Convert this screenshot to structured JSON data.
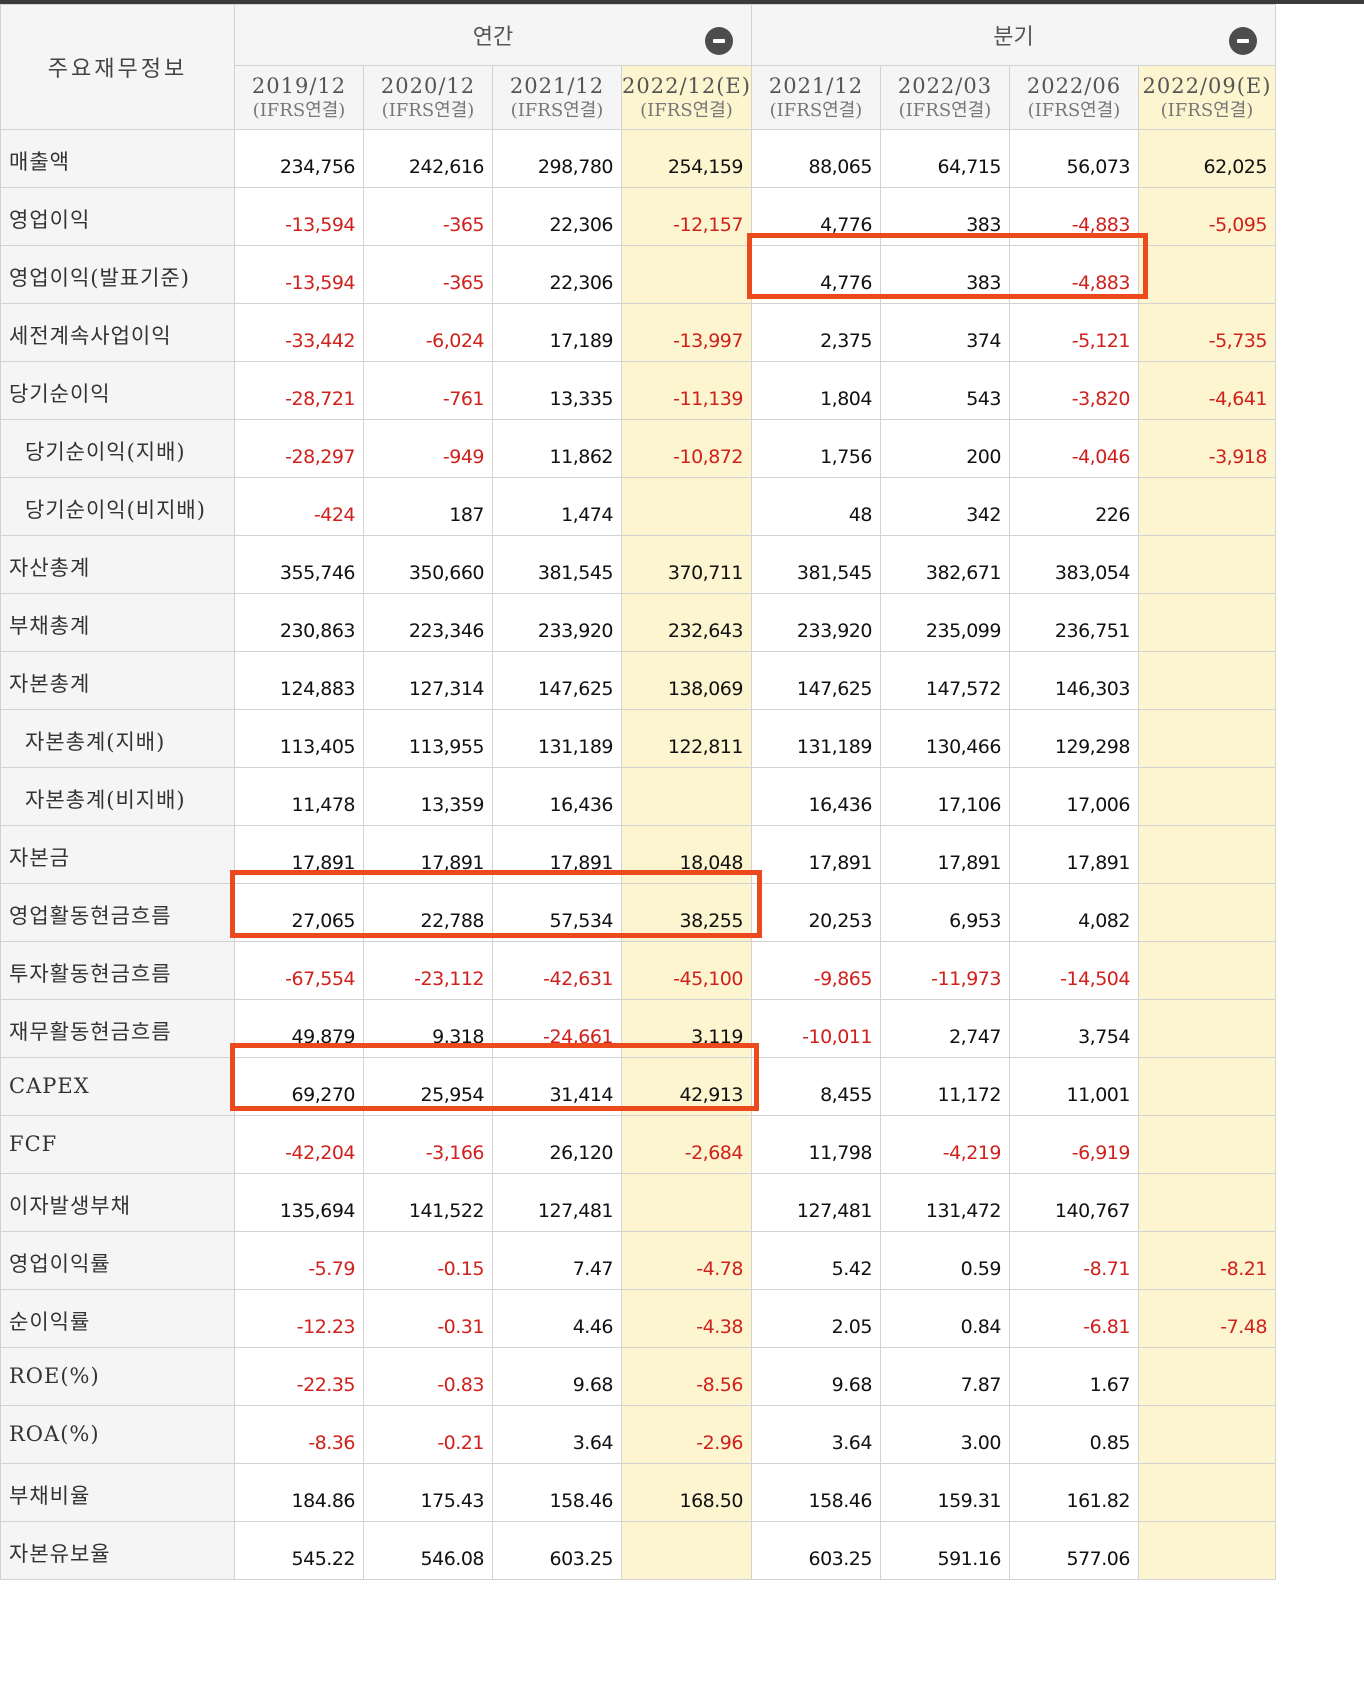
{
  "header": {
    "title": "주요재무정보",
    "annual_label": "연간",
    "quarter_label": "분기"
  },
  "columns": [
    {
      "period": "2019/12",
      "basis": "(IFRS연결)",
      "estimate": false
    },
    {
      "period": "2020/12",
      "basis": "(IFRS연결)",
      "estimate": false
    },
    {
      "period": "2021/12",
      "basis": "(IFRS연결)",
      "estimate": false
    },
    {
      "period": "2022/12(E)",
      "basis": "(IFRS연결)",
      "estimate": true
    },
    {
      "period": "2021/12",
      "basis": "(IFRS연결)",
      "estimate": false
    },
    {
      "period": "2022/03",
      "basis": "(IFRS연결)",
      "estimate": false
    },
    {
      "period": "2022/06",
      "basis": "(IFRS연결)",
      "estimate": false
    },
    {
      "period": "2022/09(E)",
      "basis": "(IFRS연결)",
      "estimate": true
    }
  ],
  "rows": [
    {
      "label": "매출액",
      "indent": false,
      "values": [
        "234,756",
        "242,616",
        "298,780",
        "254,159",
        "88,065",
        "64,715",
        "56,073",
        "62,025"
      ]
    },
    {
      "label": "영업이익",
      "indent": false,
      "values": [
        "-13,594",
        "-365",
        "22,306",
        "-12,157",
        "4,776",
        "383",
        "-4,883",
        "-5,095"
      ]
    },
    {
      "label": "영업이익(발표기준)",
      "indent": false,
      "values": [
        "-13,594",
        "-365",
        "22,306",
        "",
        "4,776",
        "383",
        "-4,883",
        ""
      ]
    },
    {
      "label": "세전계속사업이익",
      "indent": false,
      "values": [
        "-33,442",
        "-6,024",
        "17,189",
        "-13,997",
        "2,375",
        "374",
        "-5,121",
        "-5,735"
      ]
    },
    {
      "label": "당기순이익",
      "indent": false,
      "values": [
        "-28,721",
        "-761",
        "13,335",
        "-11,139",
        "1,804",
        "543",
        "-3,820",
        "-4,641"
      ]
    },
    {
      "label": "당기순이익(지배)",
      "indent": true,
      "values": [
        "-28,297",
        "-949",
        "11,862",
        "-10,872",
        "1,756",
        "200",
        "-4,046",
        "-3,918"
      ]
    },
    {
      "label": "당기순이익(비지배)",
      "indent": true,
      "values": [
        "-424",
        "187",
        "1,474",
        "",
        "48",
        "342",
        "226",
        ""
      ]
    },
    {
      "label": "자산총계",
      "indent": false,
      "values": [
        "355,746",
        "350,660",
        "381,545",
        "370,711",
        "381,545",
        "382,671",
        "383,054",
        ""
      ]
    },
    {
      "label": "부채총계",
      "indent": false,
      "values": [
        "230,863",
        "223,346",
        "233,920",
        "232,643",
        "233,920",
        "235,099",
        "236,751",
        ""
      ]
    },
    {
      "label": "자본총계",
      "indent": false,
      "values": [
        "124,883",
        "127,314",
        "147,625",
        "138,069",
        "147,625",
        "147,572",
        "146,303",
        ""
      ]
    },
    {
      "label": "자본총계(지배)",
      "indent": true,
      "values": [
        "113,405",
        "113,955",
        "131,189",
        "122,811",
        "131,189",
        "130,466",
        "129,298",
        ""
      ]
    },
    {
      "label": "자본총계(비지배)",
      "indent": true,
      "values": [
        "11,478",
        "13,359",
        "16,436",
        "",
        "16,436",
        "17,106",
        "17,006",
        ""
      ]
    },
    {
      "label": "자본금",
      "indent": false,
      "values": [
        "17,891",
        "17,891",
        "17,891",
        "18,048",
        "17,891",
        "17,891",
        "17,891",
        ""
      ]
    },
    {
      "label": "영업활동현금흐름",
      "indent": false,
      "values": [
        "27,065",
        "22,788",
        "57,534",
        "38,255",
        "20,253",
        "6,953",
        "4,082",
        ""
      ]
    },
    {
      "label": "투자활동현금흐름",
      "indent": false,
      "values": [
        "-67,554",
        "-23,112",
        "-42,631",
        "-45,100",
        "-9,865",
        "-11,973",
        "-14,504",
        ""
      ]
    },
    {
      "label": "재무활동현금흐름",
      "indent": false,
      "values": [
        "49,879",
        "9,318",
        "-24,661",
        "3,119",
        "-10,011",
        "2,747",
        "3,754",
        ""
      ]
    },
    {
      "label": "CAPEX",
      "indent": false,
      "values": [
        "69,270",
        "25,954",
        "31,414",
        "42,913",
        "8,455",
        "11,172",
        "11,001",
        ""
      ]
    },
    {
      "label": "FCF",
      "indent": false,
      "values": [
        "-42,204",
        "-3,166",
        "26,120",
        "-2,684",
        "11,798",
        "-4,219",
        "-6,919",
        ""
      ]
    },
    {
      "label": "이자발생부채",
      "indent": false,
      "values": [
        "135,694",
        "141,522",
        "127,481",
        "",
        "127,481",
        "131,472",
        "140,767",
        ""
      ]
    },
    {
      "label": "영업이익률",
      "indent": false,
      "values": [
        "-5.79",
        "-0.15",
        "7.47",
        "-4.78",
        "5.42",
        "0.59",
        "-8.71",
        "-8.21"
      ]
    },
    {
      "label": "순이익률",
      "indent": false,
      "values": [
        "-12.23",
        "-0.31",
        "4.46",
        "-4.38",
        "2.05",
        "0.84",
        "-6.81",
        "-7.48"
      ]
    },
    {
      "label": "ROE(%)",
      "indent": false,
      "values": [
        "-22.35",
        "-0.83",
        "9.68",
        "-8.56",
        "9.68",
        "7.87",
        "1.67",
        ""
      ]
    },
    {
      "label": "ROA(%)",
      "indent": false,
      "values": [
        "-8.36",
        "-0.21",
        "3.64",
        "-2.96",
        "3.64",
        "3.00",
        "0.85",
        ""
      ]
    },
    {
      "label": "부채비율",
      "indent": false,
      "values": [
        "184.86",
        "175.43",
        "158.46",
        "168.50",
        "158.46",
        "159.31",
        "161.82",
        ""
      ]
    },
    {
      "label": "자본유보율",
      "indent": false,
      "values": [
        "545.22",
        "546.08",
        "603.25",
        "",
        "603.25",
        "591.16",
        "577.06",
        ""
      ]
    }
  ],
  "colors": {
    "negative": "#d0211c",
    "estimate_bg": "#fdf5cf",
    "highlight": "#ec4a1c"
  }
}
